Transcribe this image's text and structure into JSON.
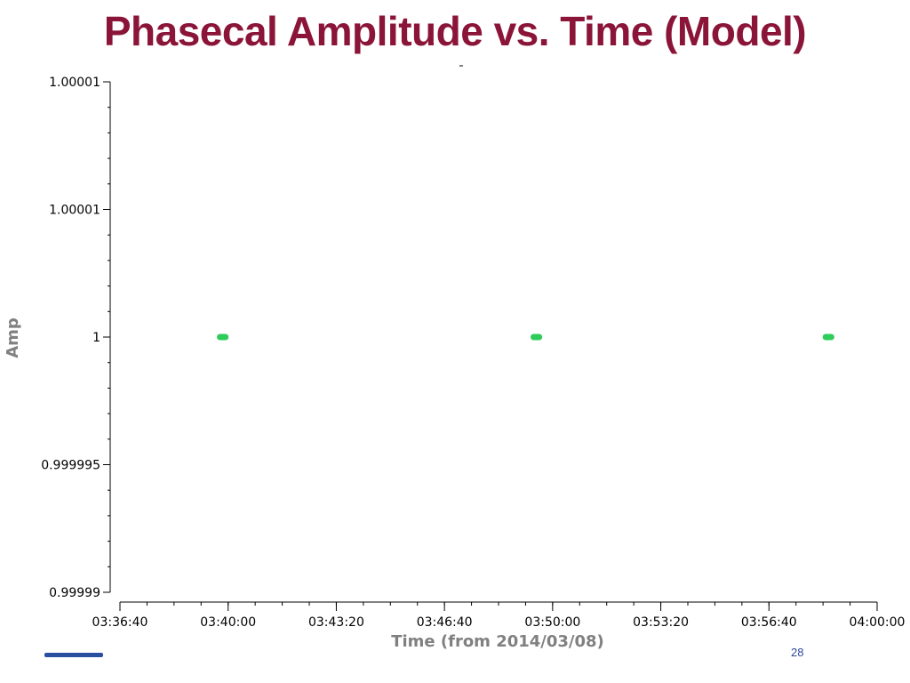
{
  "slide": {
    "title": "Phasecal Amplitude vs. Time (Model)",
    "slide_number": "28"
  },
  "chart_data": {
    "type": "scatter",
    "title": "",
    "xlabel": "Time (from 2014/03/08)",
    "ylabel": "Amp",
    "x_tick_labels": [
      "03:36:40",
      "03:40:00",
      "03:43:20",
      "03:46:40",
      "03:50:00",
      "03:53:20",
      "03:56:40",
      "04:00:00"
    ],
    "y_tick_labels": [
      "1.00001",
      "1.00001",
      "1",
      "0.999995",
      "0.99999"
    ],
    "y_tick_values": [
      1.00001,
      1.000005,
      1.0,
      0.999995,
      0.99999
    ],
    "xlim": [
      "03:36:40",
      "04:00:00"
    ],
    "ylim": [
      0.99999,
      1.00001
    ],
    "series": [
      {
        "color": "#2ecc5a",
        "segments": [
          {
            "start": "03:39:40",
            "end": "03:40:00",
            "value": 1.0
          },
          {
            "start": "03:49:20",
            "end": "03:49:40",
            "value": 1.0
          },
          {
            "start": "03:58:20",
            "end": "03:58:40",
            "value": 1.0
          }
        ]
      }
    ],
    "grid": false
  }
}
